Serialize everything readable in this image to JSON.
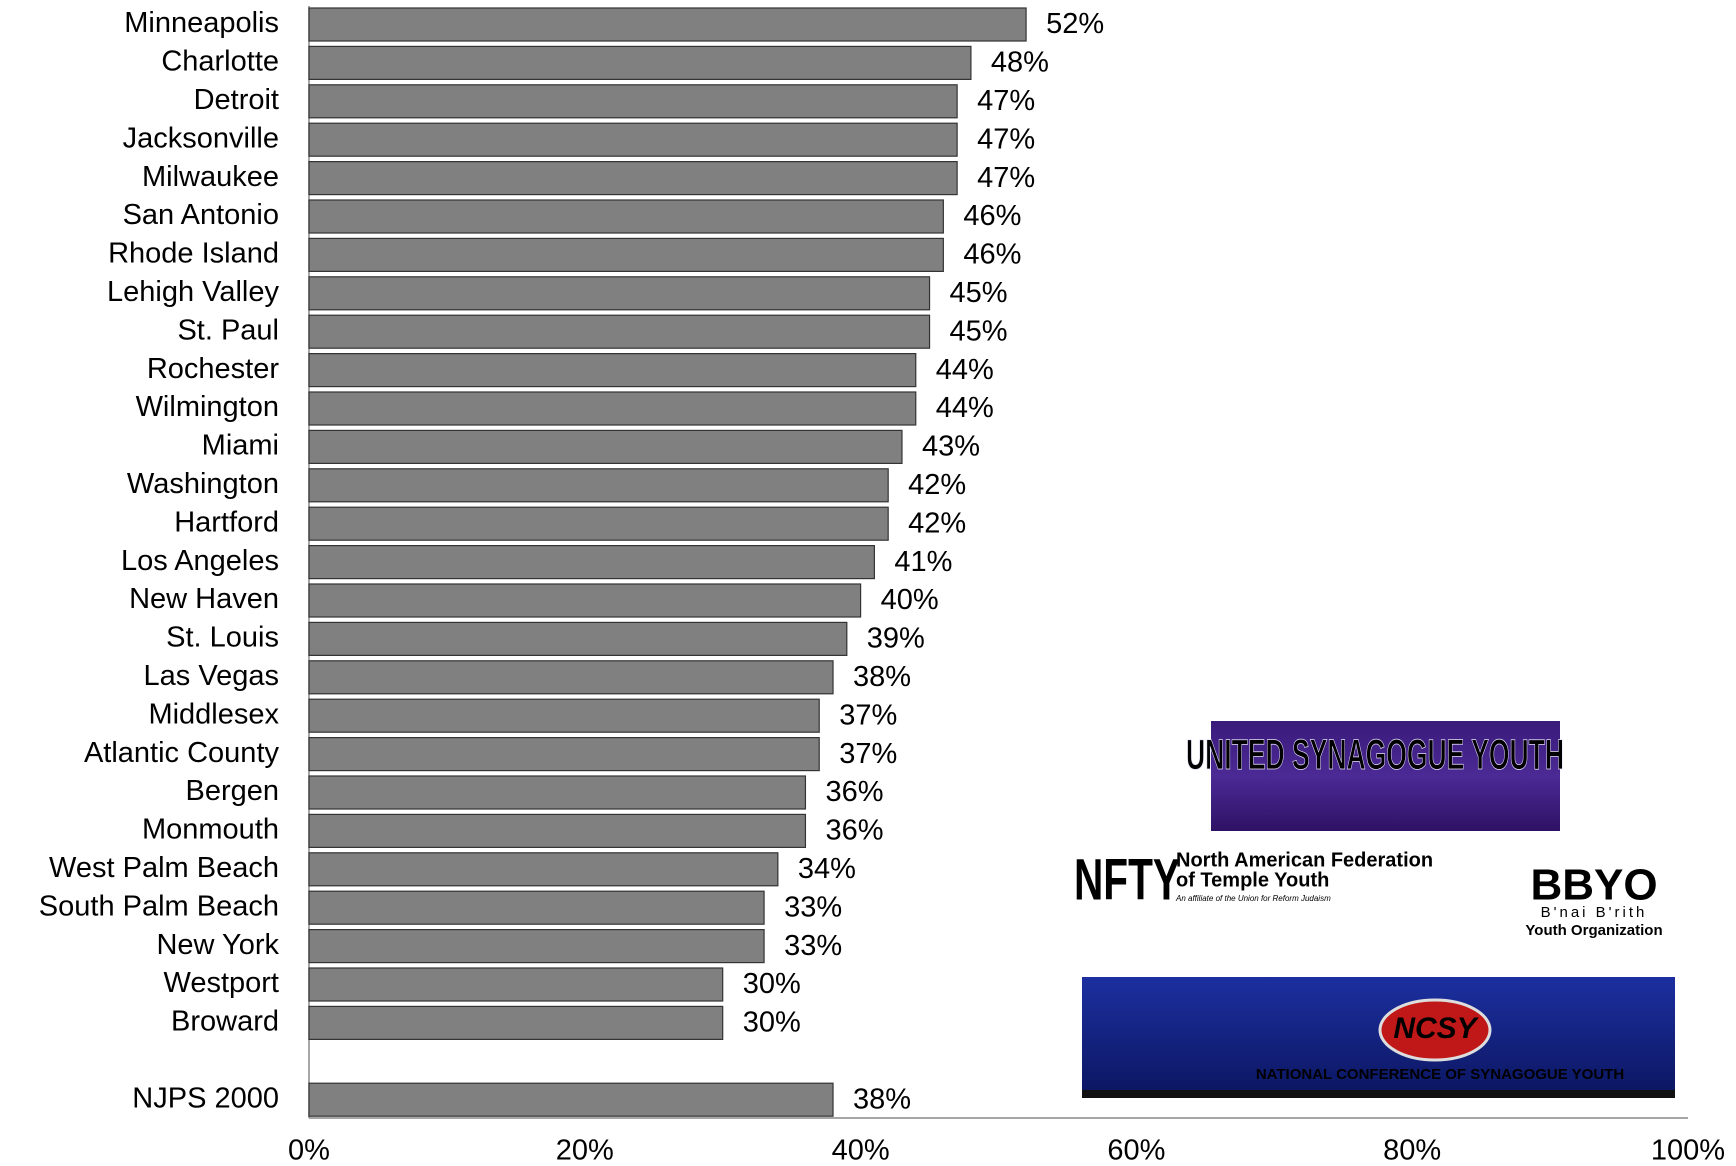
{
  "chart_data": {
    "type": "bar",
    "orientation": "horizontal",
    "categories": [
      "Minneapolis",
      "Charlotte",
      "Detroit",
      "Jacksonville",
      "Milwaukee",
      "San Antonio",
      "Rhode Island",
      "Lehigh Valley",
      "St. Paul",
      "Rochester",
      "Wilmington",
      "Miami",
      "Washington",
      "Hartford",
      "Los Angeles",
      "New Haven",
      "St. Louis",
      "Las Vegas",
      "Middlesex",
      "Atlantic County",
      "Bergen",
      "Monmouth",
      "West Palm Beach",
      "South Palm Beach",
      "New York",
      "Westport",
      "Broward",
      null,
      "NJPS 2000"
    ],
    "values": [
      52,
      48,
      47,
      47,
      47,
      46,
      46,
      45,
      45,
      44,
      44,
      43,
      42,
      42,
      41,
      40,
      39,
      38,
      37,
      37,
      36,
      36,
      34,
      33,
      33,
      30,
      30,
      null,
      38
    ],
    "value_labels": [
      "52%",
      "48%",
      "47%",
      "47%",
      "47%",
      "46%",
      "46%",
      "45%",
      "45%",
      "44%",
      "44%",
      "43%",
      "42%",
      "42%",
      "41%",
      "40%",
      "39%",
      "38%",
      "37%",
      "37%",
      "36%",
      "36%",
      "34%",
      "33%",
      "33%",
      "30%",
      "30%",
      null,
      "38%"
    ],
    "color": "#808080",
    "xlim": [
      0,
      100
    ],
    "xticks": [
      {
        "value": 0,
        "label": "0%"
      },
      {
        "value": 20,
        "label": "20%"
      },
      {
        "value": 40,
        "label": "40%"
      },
      {
        "value": 60,
        "label": "60%"
      },
      {
        "value": 80,
        "label": "80%"
      },
      {
        "value": 100,
        "label": "100%"
      }
    ],
    "grid": false
  },
  "logos": {
    "usy": "UNITED SYNAGOGUE YOUTH",
    "nfty_mark": "NFTY",
    "nfty_name_1": "North American Federation",
    "nfty_name_2": "of Temple Youth",
    "nfty_tagline": "An affiliate of the Union for Reform Judaism",
    "bbyo_mark": "BBYO",
    "bbyo_line_1": "B'nai B'rith",
    "bbyo_line_2": "Youth Organization",
    "ncsy_mark": "NCSY",
    "ncsy_name": "National Conference of Synagogue Youth"
  }
}
